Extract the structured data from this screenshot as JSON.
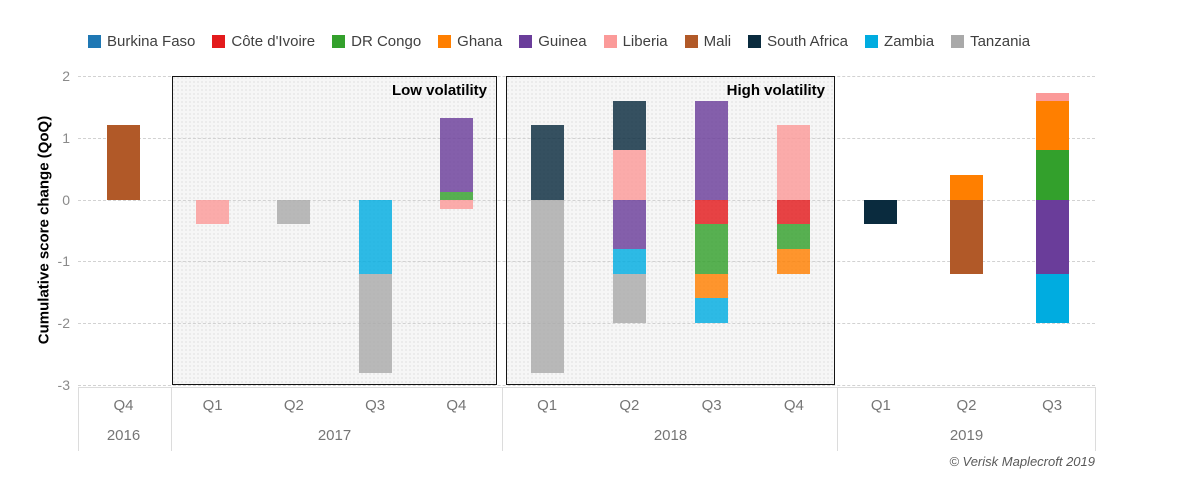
{
  "legend": {
    "items": [
      {
        "label": "Burkina Faso",
        "color": "#1F78B4"
      },
      {
        "label": "Côte d'Ivoire",
        "color": "#E31A1C"
      },
      {
        "label": "DR Congo",
        "color": "#33A02C"
      },
      {
        "label": "Ghana",
        "color": "#FF7F00"
      },
      {
        "label": "Guinea",
        "color": "#6A3D9A"
      },
      {
        "label": "Liberia",
        "color": "#FB9A99"
      },
      {
        "label": "Mali",
        "color": "#B15928"
      },
      {
        "label": "South Africa",
        "color": "#0A2B3E"
      },
      {
        "label": "Zambia",
        "color": "#00ACE0"
      },
      {
        "label": "Tanzania",
        "color": "#A9A9A9"
      }
    ]
  },
  "chart_data": {
    "type": "bar",
    "stacked": true,
    "ylabel": "Cumulative score change (QoQ)",
    "ylim": [
      -3,
      2
    ],
    "yticks": [
      2,
      1,
      0,
      -1,
      -2,
      -3
    ],
    "grid": "horizontal-dashed",
    "legend_position": "top",
    "groups": [
      {
        "year": "2016",
        "boxed": false,
        "box_label": "",
        "quarters": [
          {
            "label": "Q4",
            "segments": [
              {
                "country": "Mali",
                "value": 1.2
              }
            ]
          }
        ]
      },
      {
        "year": "2017",
        "boxed": true,
        "box_label": "Low volatility",
        "quarters": [
          {
            "label": "Q1",
            "segments": [
              {
                "country": "Liberia",
                "value": -0.4
              }
            ]
          },
          {
            "label": "Q2",
            "segments": [
              {
                "country": "Tanzania",
                "value": -0.4
              }
            ]
          },
          {
            "label": "Q3",
            "segments": [
              {
                "country": "Zambia",
                "value": -1.2
              },
              {
                "country": "Tanzania",
                "value": -1.6
              }
            ]
          },
          {
            "label": "Q4",
            "segments": [
              {
                "country": "DR Congo",
                "value": 0.12
              },
              {
                "country": "Guinea",
                "value": 1.2
              },
              {
                "country": "Liberia",
                "value": -0.16
              }
            ]
          }
        ]
      },
      {
        "year": "2018",
        "boxed": true,
        "box_label": "High volatility",
        "quarters": [
          {
            "label": "Q1",
            "segments": [
              {
                "country": "South Africa",
                "value": 1.2
              },
              {
                "country": "Tanzania",
                "value": -2.8
              }
            ]
          },
          {
            "label": "Q2",
            "segments": [
              {
                "country": "Liberia",
                "value": 0.8
              },
              {
                "country": "South Africa",
                "value": 0.8
              },
              {
                "country": "Guinea",
                "value": -0.8
              },
              {
                "country": "Zambia",
                "value": -0.4
              },
              {
                "country": "Tanzania",
                "value": -0.8
              }
            ]
          },
          {
            "label": "Q3",
            "segments": [
              {
                "country": "Guinea",
                "value": 1.6
              },
              {
                "country": "Côte d'Ivoire",
                "value": -0.4
              },
              {
                "country": "DR Congo",
                "value": -0.8
              },
              {
                "country": "Ghana",
                "value": -0.4
              },
              {
                "country": "Zambia",
                "value": -0.4
              }
            ]
          },
          {
            "label": "Q4",
            "segments": [
              {
                "country": "Liberia",
                "value": 1.2
              },
              {
                "country": "Côte d'Ivoire",
                "value": -0.4
              },
              {
                "country": "DR Congo",
                "value": -0.4
              },
              {
                "country": "Ghana",
                "value": -0.4
              }
            ]
          }
        ]
      },
      {
        "year": "2019",
        "boxed": false,
        "box_label": "",
        "quarters": [
          {
            "label": "Q1",
            "segments": [
              {
                "country": "South Africa",
                "value": -0.4
              }
            ]
          },
          {
            "label": "Q2",
            "segments": [
              {
                "country": "Ghana",
                "value": 0.4
              },
              {
                "country": "Mali",
                "value": -1.2
              }
            ]
          },
          {
            "label": "Q3",
            "segments": [
              {
                "country": "DR Congo",
                "value": 0.8
              },
              {
                "country": "Ghana",
                "value": 0.8
              },
              {
                "country": "Liberia",
                "value": 0.12
              },
              {
                "country": "Guinea",
                "value": -1.2
              },
              {
                "country": "Zambia",
                "value": -0.8
              }
            ]
          }
        ]
      }
    ]
  },
  "footer": {
    "copyright": "© Verisk Maplecroft 2019"
  }
}
